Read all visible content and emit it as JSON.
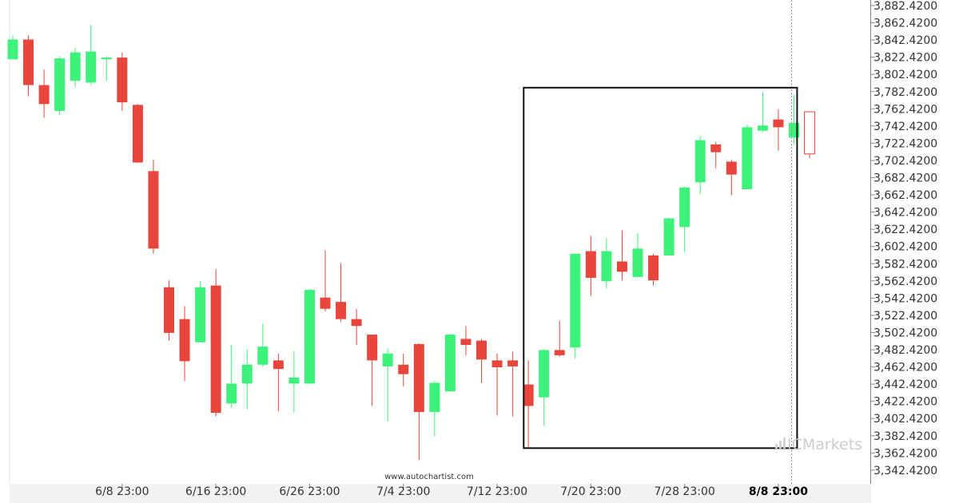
{
  "chart_data": {
    "type": "candlestick",
    "y_ticks": [
      "3,882.4200",
      "3,862.4200",
      "3,842.4200",
      "3,822.4200",
      "3,802.4200",
      "3,782.4200",
      "3,762.4200",
      "3,742.4200",
      "3,722.4200",
      "3,702.4200",
      "3,682.4200",
      "3,662.4200",
      "3,642.4200",
      "3,622.4200",
      "3,602.4200",
      "3,582.4200",
      "3,562.4200",
      "3,542.4200",
      "3,522.4200",
      "3,502.4200",
      "3,482.4200",
      "3,462.4200",
      "3,442.4200",
      "3,422.4200",
      "3,402.4200",
      "3,382.4200",
      "3,362.4200",
      "3,342.4200"
    ],
    "x_ticks": [
      {
        "label": "6/8 23:00",
        "index": 7
      },
      {
        "label": "6/16 23:00",
        "index": 13
      },
      {
        "label": "6/26 23:00",
        "index": 19
      },
      {
        "label": "7/4 23:00",
        "index": 25
      },
      {
        "label": "7/12 23:00",
        "index": 31
      },
      {
        "label": "7/20 23:00",
        "index": 37
      },
      {
        "label": "7/28 23:00",
        "index": 43
      },
      {
        "label": "8/8 23:00",
        "index": 49,
        "bold": true
      }
    ],
    "ylim": [
      3329,
      3889
    ],
    "up_color": "#3df27a",
    "down_color": "#e8453c",
    "ohlc": [
      [
        3820,
        3843,
        3820,
        3848
      ],
      [
        3843,
        3790,
        3777,
        3848
      ],
      [
        3790,
        3768,
        3752,
        3808
      ],
      [
        3760,
        3821,
        3755,
        3823
      ],
      [
        3795,
        3828,
        3788,
        3833
      ],
      [
        3793,
        3829,
        3790,
        3860
      ],
      [
        3820,
        3822,
        3795,
        3823
      ],
      [
        3822,
        3770,
        3760,
        3828
      ],
      [
        3767,
        3700,
        3700,
        3768
      ],
      [
        3690,
        3600,
        3594,
        3703
      ],
      [
        3555,
        3502,
        3493,
        3563
      ],
      [
        3518,
        3469,
        3446,
        3533
      ],
      [
        3491,
        3555,
        3491,
        3562
      ],
      [
        3557,
        3409,
        3405,
        3576
      ],
      [
        3420,
        3443,
        3415,
        3488
      ],
      [
        3443,
        3465,
        3413,
        3483
      ],
      [
        3465,
        3486,
        3463,
        3513
      ],
      [
        3470,
        3460,
        3411,
        3478
      ],
      [
        3443,
        3450,
        3409,
        3481
      ],
      [
        3443,
        3552,
        3443,
        3553
      ],
      [
        3543,
        3530,
        3527,
        3598
      ],
      [
        3538,
        3518,
        3515,
        3583
      ],
      [
        3518,
        3510,
        3488,
        3530
      ],
      [
        3500,
        3470,
        3417,
        3500
      ],
      [
        3463,
        3478,
        3399,
        3484
      ],
      [
        3465,
        3454,
        3440,
        3478
      ],
      [
        3489,
        3410,
        3354,
        3490
      ],
      [
        3410,
        3444,
        3382,
        3446
      ],
      [
        3434,
        3500,
        3434,
        3501
      ],
      [
        3495,
        3488,
        3476,
        3510
      ],
      [
        3493,
        3471,
        3444,
        3495
      ],
      [
        3470,
        3462,
        3406,
        3478
      ],
      [
        3470,
        3463,
        3405,
        3480
      ],
      [
        3442,
        3417,
        3369,
        3470
      ],
      [
        3427,
        3482,
        3394,
        3483
      ],
      [
        3482,
        3476,
        3474,
        3516
      ],
      [
        3485,
        3594,
        3472,
        3594
      ],
      [
        3597,
        3566,
        3545,
        3615
      ],
      [
        3562,
        3597,
        3554,
        3612
      ],
      [
        3585,
        3573,
        3563,
        3621
      ],
      [
        3567,
        3600,
        3567,
        3618
      ],
      [
        3592,
        3563,
        3557,
        3594
      ],
      [
        3592,
        3635,
        3592,
        3636
      ],
      [
        3625,
        3671,
        3596,
        3672
      ],
      [
        3677,
        3726,
        3663,
        3731
      ],
      [
        3721,
        3712,
        3693,
        3724
      ],
      [
        3701,
        3686,
        3662,
        3703
      ],
      [
        3669,
        3741,
        3669,
        3744
      ],
      [
        3737,
        3743,
        3735,
        3782
      ],
      [
        3750,
        3741,
        3714,
        3762
      ],
      [
        3729,
        3746,
        3721,
        3779
      ],
      [
        3759,
        3710,
        3705,
        3759
      ]
    ],
    "last_candle_hollow": true,
    "annotation_box": {
      "start_index": 32.7,
      "end_index": 50.2,
      "y_top": 3787,
      "y_bottom": 3368
    },
    "vertical_marker_index": 50
  },
  "credit": "www.autochartist.com",
  "watermark": "ICMarkets",
  "colors": {
    "up": "#3df27a",
    "down": "#e8453c",
    "box": "#111111",
    "grid_area": "#ffffff",
    "axis_band": "#f2f2f2"
  }
}
